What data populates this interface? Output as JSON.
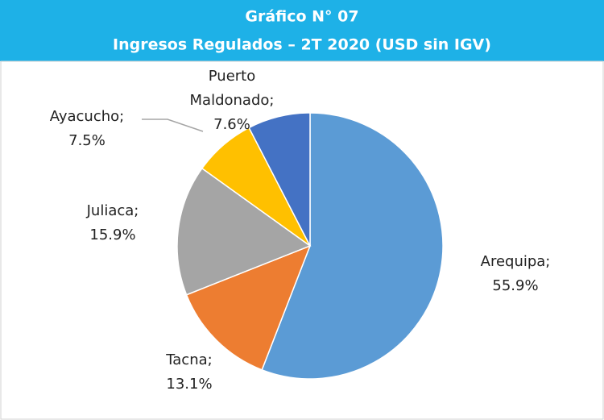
{
  "chart_data": {
    "type": "pie",
    "title": "Gráfico N° 07",
    "subtitle": "Ingresos Regulados – 2T 2020 (USD sin IGV)",
    "categories": [
      "Arequipa;",
      "Tacna;",
      "Juliaca;",
      "Ayacucho;",
      "Puerto Maldonado;"
    ],
    "values": [
      55.9,
      13.1,
      15.9,
      7.5,
      7.6
    ],
    "value_labels": [
      "55.9%",
      "13.1%",
      "15.9%",
      "7.5%",
      "7.6%"
    ],
    "colors": [
      "#5b9bd5",
      "#ed7d31",
      "#a5a5a5",
      "#ffc000",
      "#4472c4"
    ]
  }
}
